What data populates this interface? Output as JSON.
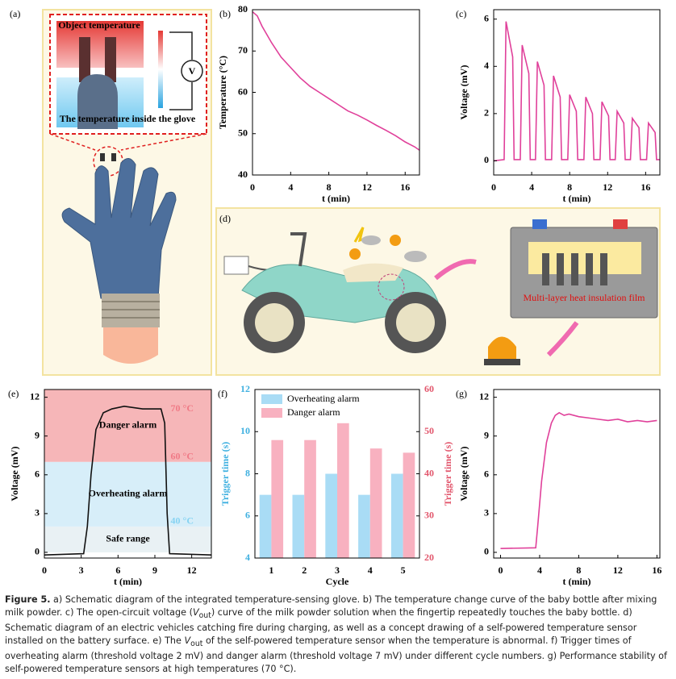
{
  "illustrations": {
    "a": {
      "panel": "(a)",
      "object_label": "Object temperature",
      "glove_label": "The temperature inside the glove",
      "meter": "V"
    },
    "d": {
      "panel": "(d)",
      "film_label": "Multi-layer heat insulation film"
    }
  },
  "chart_data": [
    {
      "type": "line",
      "panel": "(b)",
      "xlabel": "t (min)",
      "ylabel": "Temperature (°C)",
      "x": [
        0,
        0.5,
        1,
        2,
        3,
        4,
        5,
        6,
        7,
        8,
        9,
        10,
        11,
        12,
        13,
        14,
        15,
        16,
        17,
        17.5
      ],
      "series": [
        {
          "color": "#e0409a",
          "values": [
            79.5,
            78.5,
            76,
            72,
            68.5,
            66,
            63.5,
            61.5,
            60,
            58.5,
            57,
            55.5,
            54.5,
            53.3,
            52,
            50.8,
            49.5,
            48,
            46.8,
            46
          ]
        }
      ],
      "xlim": [
        0,
        17.5
      ],
      "xticks": [
        0,
        4,
        8,
        12,
        16
      ],
      "ylim": [
        40,
        80
      ],
      "yticks": [
        40,
        50,
        60,
        70,
        80
      ]
    },
    {
      "type": "line",
      "panel": "(c)",
      "xlabel": "t (min)",
      "ylabel": "Voltage (mV)",
      "x": [
        0,
        1.1,
        1.3,
        2.0,
        2.15,
        2.8,
        3.0,
        3.7,
        3.85,
        4.4,
        4.6,
        5.3,
        5.45,
        6.1,
        6.3,
        7.0,
        7.15,
        7.8,
        8.0,
        8.7,
        8.85,
        9.5,
        9.7,
        10.4,
        10.55,
        11.2,
        11.4,
        12.1,
        12.25,
        12.8,
        13.0,
        13.7,
        13.85,
        14.4,
        14.6,
        15.3,
        15.45,
        16.1,
        16.3,
        17.0,
        17.15,
        17.5
      ],
      "series": [
        {
          "color": "#e0409a",
          "values": [
            0,
            0.05,
            5.9,
            4.4,
            0.05,
            0.05,
            4.9,
            3.7,
            0.05,
            0.05,
            4.2,
            3.2,
            0.05,
            0.05,
            3.6,
            2.7,
            0.05,
            0.05,
            2.8,
            2.1,
            0.05,
            0.05,
            2.7,
            2.0,
            0.05,
            0.05,
            2.5,
            1.9,
            0.05,
            0.05,
            2.1,
            1.6,
            0.05,
            0.05,
            1.8,
            1.4,
            0.05,
            0.05,
            1.6,
            1.2,
            0.05,
            0.05
          ]
        }
      ],
      "xlim": [
        0,
        17.5
      ],
      "xticks": [
        0,
        4,
        8,
        12,
        16
      ],
      "ylim": [
        -0.6,
        6.4
      ],
      "yticks": [
        0,
        2,
        4,
        6
      ]
    },
    {
      "type": "line",
      "panel": "(e)",
      "xlabel": "t (min)",
      "ylabel": "Voltage (mV)",
      "x": [
        0,
        3.2,
        3.5,
        3.8,
        4.2,
        4.8,
        5.5,
        6.5,
        8,
        9.5,
        9.8,
        10.0,
        10.2,
        13.6
      ],
      "series": [
        {
          "color": "#111111",
          "values": [
            -0.2,
            -0.1,
            2,
            6,
            9.5,
            10.8,
            11.1,
            11.3,
            11.1,
            11.1,
            10,
            3,
            -0.1,
            -0.2
          ]
        }
      ],
      "regions": [
        {
          "name": "Safe range",
          "from": 0,
          "to": 2,
          "color": "#e9f1f4"
        },
        {
          "name": "Overheating alarm",
          "from": 2,
          "to": 7,
          "color": "#d7eef9"
        },
        {
          "name": "Danger alarm",
          "from": 7,
          "to": 12.6,
          "color": "#f6b6b8",
          "temperature": "70 °C"
        }
      ],
      "temperature_labels": [
        {
          "value": 7,
          "label": "60 °C",
          "color": "#f07a86"
        },
        {
          "value": 2,
          "label": "40 °C",
          "color": "#86d3f2"
        }
      ],
      "xlim": [
        0,
        13.6
      ],
      "xticks": [
        0,
        3,
        6,
        9,
        12
      ],
      "ylim": [
        -0.44,
        12.6
      ],
      "yticks": [
        0,
        3,
        6,
        9,
        12
      ]
    },
    {
      "type": "bar",
      "panel": "(f)",
      "xlabel": "Cycle",
      "ylabel": "Trigger time (s)",
      "y2label": "Trigger time (s)",
      "categories": [
        "1",
        "2",
        "3",
        "4",
        "5"
      ],
      "series": [
        {
          "name": "Overheating alarm",
          "color": "#a9dcf5",
          "values": [
            7,
            7,
            8,
            7,
            8
          ]
        },
        {
          "name": "Danger alarm",
          "color": "#f8b1c0",
          "axis": "y2",
          "values": [
            48,
            48,
            52,
            46,
            45
          ]
        }
      ],
      "axis_colors": {
        "y": "#3fb0e0",
        "y2": "#e2566c"
      },
      "ylim": [
        4,
        12
      ],
      "yticks": [
        4,
        6,
        8,
        10,
        12
      ],
      "y2lim": [
        20,
        60
      ],
      "y2ticks": [
        20,
        30,
        40,
        50,
        60
      ]
    },
    {
      "type": "line",
      "panel": "(g)",
      "xlabel": "t (min)",
      "ylabel": "Voltage (mV)",
      "x": [
        0,
        3.6,
        3.8,
        4.2,
        4.7,
        5.2,
        5.6,
        6,
        6.5,
        7,
        8,
        9,
        10,
        11,
        12,
        13,
        14,
        15,
        16
      ],
      "series": [
        {
          "color": "#e0409a",
          "values": [
            0.3,
            0.35,
            2,
            5.5,
            8.5,
            10,
            10.6,
            10.8,
            10.6,
            10.7,
            10.5,
            10.4,
            10.3,
            10.2,
            10.3,
            10.1,
            10.2,
            10.1,
            10.2
          ]
        }
      ],
      "xlim": [
        -0.7,
        16.3
      ],
      "xticks": [
        0,
        4,
        8,
        12,
        16
      ],
      "ylim": [
        -0.44,
        12.6
      ],
      "yticks": [
        0,
        3,
        6,
        9,
        12
      ]
    }
  ],
  "caption": {
    "label": "Figure 5.",
    "runs": [
      " a) Schematic diagram of the integrated temperature-sensing glove. b) The temperature change curve of the baby bottle after mixing milk powder. c) The open-circuit voltage (",
      "V",
      "out",
      ") curve of the milk powder solution when the fingertip repeatedly touches the baby bottle. d) Schematic diagram of an electric vehicles catching fire during charging, as well as a concept drawing of a self-powered temperature sensor installed on the battery surface. e) The ",
      "V",
      "out",
      " of the self-powered temperature sensor when the temperature is abnormal. f) Trigger times of overheating alarm (threshold voltage 2 mV) and danger alarm (threshold voltage 7 mV) under different cycle numbers. g) Performance stability of self-powered temperature sensors at high temperatures (70 °C)."
    ]
  }
}
